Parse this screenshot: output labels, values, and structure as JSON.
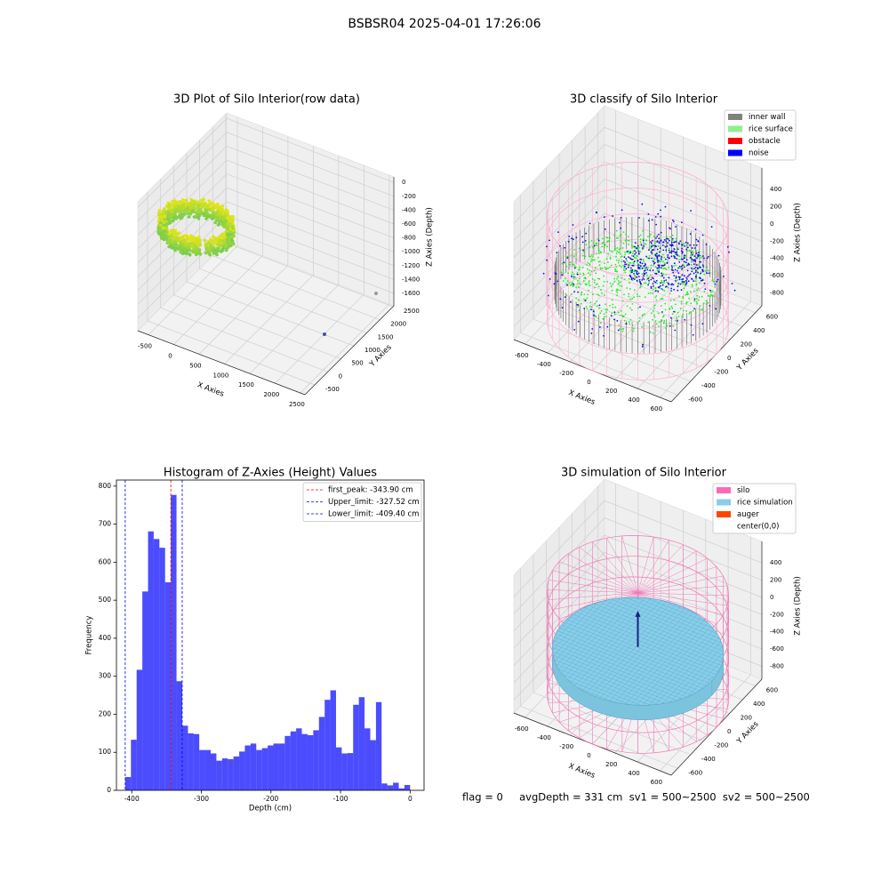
{
  "suptitle": "BSBSR04 2025-04-01 17:26:06",
  "footer": "flag = 0     avgDepth = 331 cm  sv1 = 500~2500  sv2 = 500~2500",
  "chart_data": [
    {
      "type": "scatter3d",
      "title": "3D Plot of Silo Interior(row data)",
      "xlabel": "X Axies",
      "ylabel": "Y Axies",
      "zlabel": "Z Axies (Depth)",
      "xlim": [
        -710,
        2590
      ],
      "ylim": [
        -875,
        2535
      ],
      "zlim": [
        -1780,
        80
      ],
      "xticks": [
        -500,
        0,
        500,
        1000,
        1500,
        2000,
        2500
      ],
      "yticks": [
        -500,
        0,
        500,
        1000,
        1500,
        2000,
        2500
      ],
      "zticks": [
        0,
        -200,
        -400,
        -600,
        -800,
        -1000,
        -1200,
        -1400,
        -1600
      ]
    },
    {
      "type": "scatter3d",
      "title": "3D classify of Silo Interior",
      "xlabel": "X Axies",
      "ylabel": "Y Axies",
      "zlabel": "Z Axies (Depth)",
      "xlim": [
        -700,
        700
      ],
      "ylim": [
        -700,
        700
      ],
      "zlim": [
        -950,
        650
      ],
      "xticks": [
        -600,
        -400,
        -200,
        0,
        200,
        400,
        600
      ],
      "yticks": [
        -600,
        -400,
        -200,
        0,
        200,
        400,
        600
      ],
      "zticks": [
        400,
        200,
        0,
        -200,
        -400,
        -600,
        -800
      ],
      "legend": "upper right",
      "series": [
        {
          "name": "inner wall",
          "color": "#808080"
        },
        {
          "name": "rice surface",
          "color": "#90ee90"
        },
        {
          "name": "obstacle",
          "color": "#ff0000"
        },
        {
          "name": "noise",
          "color": "#0000ff"
        }
      ]
    },
    {
      "type": "histogram",
      "title": "Histogram of Z-Axies (Height) Values",
      "xlabel": "Depth (cm)",
      "ylabel": "Frequency",
      "color": "#0000ff",
      "alpha": 0.7,
      "bins": [
        -409.4,
        -401.2,
        -393.0,
        -384.8,
        -376.6,
        -368.5,
        -360.3,
        -352.1,
        -343.9,
        -335.7,
        -327.5,
        -319.3,
        -311.1,
        -303.0,
        -294.8,
        -286.6,
        -278.4,
        -270.2,
        -262.0,
        -253.8,
        -245.6,
        -237.5,
        -229.3,
        -221.1,
        -212.9,
        -204.7,
        -196.5,
        -188.3,
        -180.1,
        -172.0,
        -163.8,
        -155.6,
        -147.4,
        -139.2,
        -131.0,
        -122.8,
        -114.6,
        -106.5,
        -98.3,
        -90.1,
        -81.9,
        -73.7,
        -65.5,
        -57.3,
        -49.1,
        -41.0,
        -32.8,
        -24.6,
        -16.4,
        -8.2,
        0
      ],
      "counts": [
        35,
        133,
        317,
        523,
        681,
        661,
        638,
        547,
        777,
        287,
        170,
        150,
        148,
        106,
        106,
        97,
        78,
        84,
        82,
        89,
        102,
        118,
        123,
        106,
        111,
        118,
        123,
        123,
        143,
        155,
        163,
        148,
        145,
        158,
        193,
        238,
        263,
        113,
        97,
        98,
        225,
        245,
        163,
        132,
        232,
        18,
        13,
        20,
        5,
        14
      ],
      "xlim": [
        -422,
        20
      ],
      "ylim": [
        0,
        816
      ],
      "xticks": [
        -400,
        -300,
        -200,
        -100,
        0
      ],
      "yticks": [
        0,
        100,
        200,
        300,
        400,
        500,
        600,
        700,
        800
      ],
      "legend": "upper right",
      "vlines": [
        {
          "name": "first_peak: -343.90 cm",
          "value": -343.9,
          "color": "#ff0000"
        },
        {
          "name": "Upper_limit: -327.52 cm",
          "value": -327.52,
          "color": "#0000ff"
        },
        {
          "name": "Lower_limit: -409.40 cm",
          "value": -409.4,
          "color": "#0000ff"
        }
      ]
    },
    {
      "type": "surface3d",
      "title": "3D simulation of Silo Interior",
      "xlabel": "X Axies",
      "ylabel": "Y Axies",
      "zlabel": "Z Axies (Depth)",
      "xlim": [
        -700,
        700
      ],
      "ylim": [
        -700,
        700
      ],
      "zlim": [
        -950,
        650
      ],
      "xticks": [
        -600,
        -400,
        -200,
        0,
        200,
        400,
        600
      ],
      "yticks": [
        -600,
        -400,
        -200,
        0,
        200,
        400,
        600
      ],
      "zticks": [
        400,
        200,
        0,
        -200,
        -400,
        -600,
        -800
      ],
      "legend": "upper right",
      "series": [
        {
          "name": "silo",
          "color": "#ff69b4"
        },
        {
          "name": "rice simulation",
          "color": "#87ceeb"
        },
        {
          "name": "auger",
          "color": "#ff4500"
        },
        {
          "name": "center(0,0)",
          "color": "#ffffff"
        }
      ]
    }
  ]
}
